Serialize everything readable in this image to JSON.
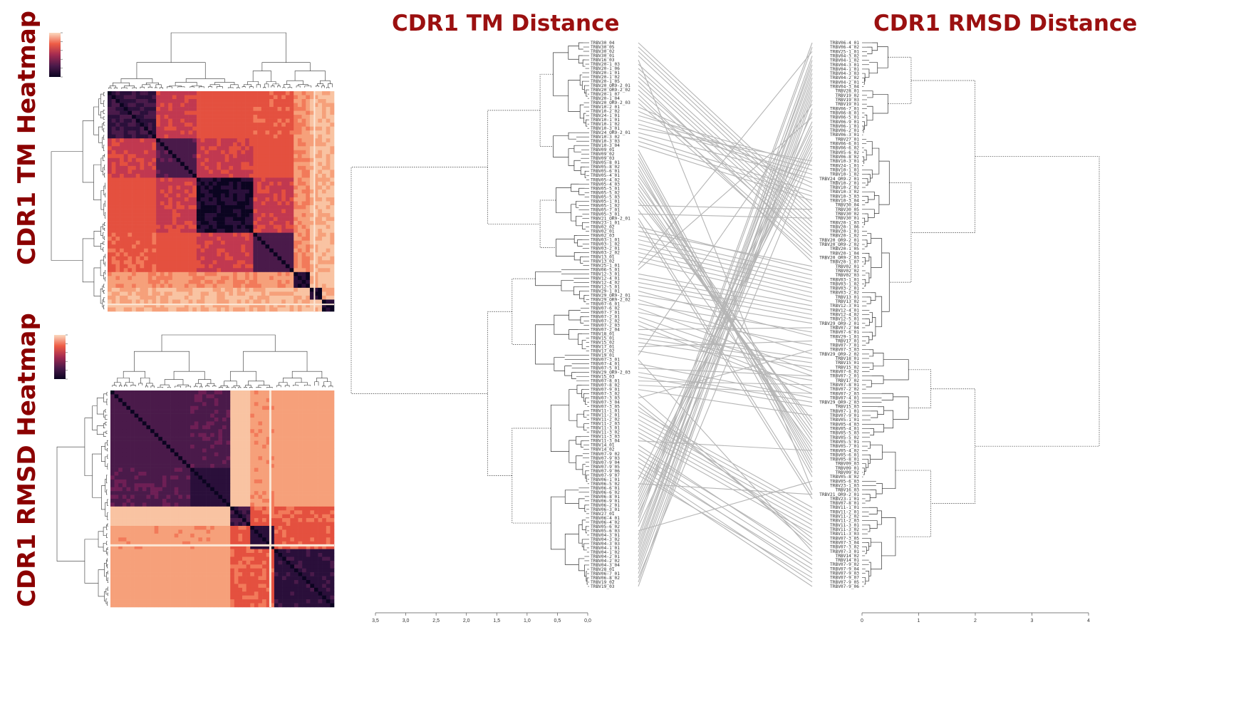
{
  "titles": {
    "tm_heatmap": "CDR1 TM Heatmap",
    "rmsd_heatmap": "CDR1 RMSD Heatmap",
    "tm_distance": "CDR1 TM Distance",
    "rmsd_distance": "CDR1 RMSD Distance"
  },
  "colors": {
    "title": "#9b1010",
    "dendro": "#333333",
    "connector": "#b5b5b5"
  },
  "axes": {
    "tm_ticks": [
      "3,5",
      "3,0",
      "2,5",
      "2,0",
      "1,5",
      "1,0",
      "0,5",
      "0,0"
    ],
    "rmsd_ticks": [
      "0",
      "1",
      "2",
      "3",
      "4"
    ]
  },
  "tm_leaves": [
    "TRBV30_04",
    "TRBV30_05",
    "TRBV30_02",
    "TRBV30_01",
    "TRBV16_03",
    "TRBV20-1_03",
    "TRBV20-1_06",
    "TRBV20-1_01",
    "TRBV20-1_02",
    "TRBV20-1_05",
    "TRBV20_OR9-2_01",
    "TRBV20_OR9-2_02",
    "TRBV20-1_07",
    "TRBV20-1_04",
    "TRBV20_OR9-2_03",
    "TRBV10-2_01",
    "TRBV10-2_02",
    "TRBV24-1_01",
    "TRBV10-1_01",
    "TRBV10-1_02",
    "TRBV10-3_01",
    "TRBV24_OR9-2_01",
    "TRBV10-3_02",
    "TRBV10-3_03",
    "TRBV10-3_04",
    "TRBV09_01",
    "TRBV09_02",
    "TRBV09_03",
    "TRBV05-8_01",
    "TRBV05-8_02",
    "TRBV05-6_01",
    "TRBV05-4_01",
    "TRBV05-4_02",
    "TRBV05-4_03",
    "TRBV05-5_01",
    "TRBV05-5_02",
    "TRBV05-5_03",
    "TRBV05-1_01",
    "TRBV05-1_02",
    "TRBV05-7_01",
    "TRBV05-3_01",
    "TRBV21_OR9-2_01",
    "TRBV23-1_01",
    "TRBV02_02",
    "TRBV02_01",
    "TRBV02_03",
    "TRBV03-1_01",
    "TRBV03-1_02",
    "TRBV03-2_01",
    "TRBV03-2_02",
    "TRBV13_01",
    "TRBV13_02",
    "TRBV25-1_01",
    "TRBV06-5_01",
    "TRBV12-3_01",
    "TRBV12-4_01",
    "TRBV12-4_02",
    "TRBV12-5_01",
    "TRBV29-1_01",
    "TRBV29_OR9-2_01",
    "TRBV29_OR9-2_02",
    "TRBV07-6_01",
    "TRBV07-6_02",
    "TRBV07-7_01",
    "TRBV07-2_01",
    "TRBV07-2_02",
    "TRBV07-2_03",
    "TRBV07-2_04",
    "TRBV18_01",
    "TRBV15_01",
    "TRBV15_02",
    "TRBV17_01",
    "TRBV17_02",
    "TRBV19_01",
    "TRBV07-3_01",
    "TRBV07-4_01",
    "TRBV07-5_01",
    "TRBV29_OR9-2_03",
    "TRBV15_03",
    "TRBV07-8_01",
    "TRBV07-8_02",
    "TRBV07-9_01",
    "TRBV07-3_02",
    "TRBV07-3_03",
    "TRBV07-3_04",
    "TRBV07-3_05",
    "TRBV11-1_01",
    "TRBV11-2_01",
    "TRBV11-2_02",
    "TRBV11-2_03",
    "TRBV11-3_01",
    "TRBV11-3_02",
    "TRBV11-3_03",
    "TRBV11-3_04",
    "TRBV14_01",
    "TRBV14_02",
    "TRBV07-9_02",
    "TRBV07-9_03",
    "TRBV07-9_04",
    "TRBV07-9_05",
    "TRBV07-9_06",
    "TRBV07-9_07",
    "TRBV06-1_01",
    "TRBV06-5_02",
    "TRBV06-6_01",
    "TRBV06-6_02",
    "TRBV06-8_01",
    "TRBV06-9_01",
    "TRBV06-2_01",
    "TRBV06-3_01",
    "TRBV27_01",
    "TRBV06-4_01",
    "TRBV06-4_02",
    "TRBV05-6_02",
    "TRBV05-6_03",
    "TRBV04-3_01",
    "TRBV04-3_02",
    "TRBV04-3_03",
    "TRBV04-1_01",
    "TRBV04-1_02",
    "TRBV04-2_01",
    "TRBV04-2_02",
    "TRBV04-3_04",
    "TRBV28_01",
    "TRBV06-7_01",
    "TRBV06-8_02",
    "TRBV19_02",
    "TRBV19_03"
  ],
  "rmsd_leaves": [
    "TRBV06-4_01",
    "TRBV06-4_02",
    "TRBV25-1_01",
    "TRBV04-3_02",
    "TRBV04-1_02",
    "TRBV04-3_01",
    "TRBV04-1_01",
    "TRBV04-3_03",
    "TRBV04-2_02",
    "TRBV04-2_01",
    "TRBV04-3_04",
    "TRBV28_01",
    "TRBV19_02",
    "TRBV19_03",
    "TRBV19_01",
    "TRBV06-7_01",
    "TRBV06-8_01",
    "TRBV06-5_01",
    "TRBV06-9_01",
    "TRBV06-1_01",
    "TRBV06-2_01",
    "TRBV06-3_01",
    "TRBV27_01",
    "TRBV06-6_01",
    "TRBV06-6_02",
    "TRBV05-6_02",
    "TRBV06-8_02",
    "TRBV10-3_01",
    "TRBV24-1_01",
    "TRBV10-1_01",
    "TRBV10-1_02",
    "TRBV24_OR9-2_01",
    "TRBV10-2_01",
    "TRBV10-2_02",
    "TRBV10-3_02",
    "TRBV10-3_03",
    "TRBV10-3_04",
    "TRBV30_04",
    "TRBV30_05",
    "TRBV30_02",
    "TRBV30_01",
    "TRBV20-1_03",
    "TRBV20-1_06",
    "TRBV20-1_01",
    "TRBV20-1_02",
    "TRBV20_OR9-2_01",
    "TRBV20_OR9-2_02",
    "TRBV20-1_05",
    "TRBV20-1_04",
    "TRBV20_OR9-2_03",
    "TRBV20-1_07",
    "TRBV02_01",
    "TRBV02_02",
    "TRBV02_03",
    "TRBV03-1_01",
    "TRBV03-1_02",
    "TRBV03-2_01",
    "TRBV03-2_02",
    "TRBV13_01",
    "TRBV13_02",
    "TRBV12-3_01",
    "TRBV12-4_01",
    "TRBV12-4_02",
    "TRBV12-5_01",
    "TRBV29_OR9-2_01",
    "TRBV07-2_04",
    "TRBV07-6_01",
    "TRBV29-1_01",
    "TRBV17_01",
    "TRBV07-7_01",
    "TRBV07-3_03",
    "TRBV29_OR9-2_02",
    "TRBV18_01",
    "TRBV15_01",
    "TRBV15_02",
    "TRBV07-6_02",
    "TRBV07-2_01",
    "TRBV17_02",
    "TRBV07-8_01",
    "TRBV07-2_02",
    "TRBV07-2_03",
    "TRBV07-4_01",
    "TRBV29_OR9-2_03",
    "TRBV15_03",
    "TRBV07-1_01",
    "TRBV07-9_01",
    "TRBV05-1_01",
    "TRBV05-4_03",
    "TRBV05-4_01",
    "TRBV05-5_03",
    "TRBV05-5_02",
    "TRBV05-5_01",
    "TRBV05-7_01",
    "TRBV05-4_02",
    "TRBV05-6_01",
    "TRBV05-8_01",
    "TRBV09_03",
    "TRBV09_01",
    "TRBV09_02",
    "TRBV05-8_02",
    "TRBV05-6_03",
    "TRBV23-1_03",
    "TRBV16_03",
    "TRBV21_OR9-2_01",
    "TRBV23-1_01",
    "TRBV07-8_01",
    "TRBV11-1_01",
    "TRBV11-2_01",
    "TRBV11-2_02",
    "TRBV11-2_03",
    "TRBV11-3_01",
    "TRBV11-3_02",
    "TRBV11-3_03",
    "TRBV07-3_05",
    "TRBV07-3_04",
    "TRBV07-3_02",
    "TRBV07-3_01",
    "TRBV14_02",
    "TRBV14_01",
    "TRBV07-9_02",
    "TRBV07-9_04",
    "TRBV07-9_03",
    "TRBV07-9_07",
    "TRBV07-9_05",
    "TRBV07-9_06"
  ]
}
